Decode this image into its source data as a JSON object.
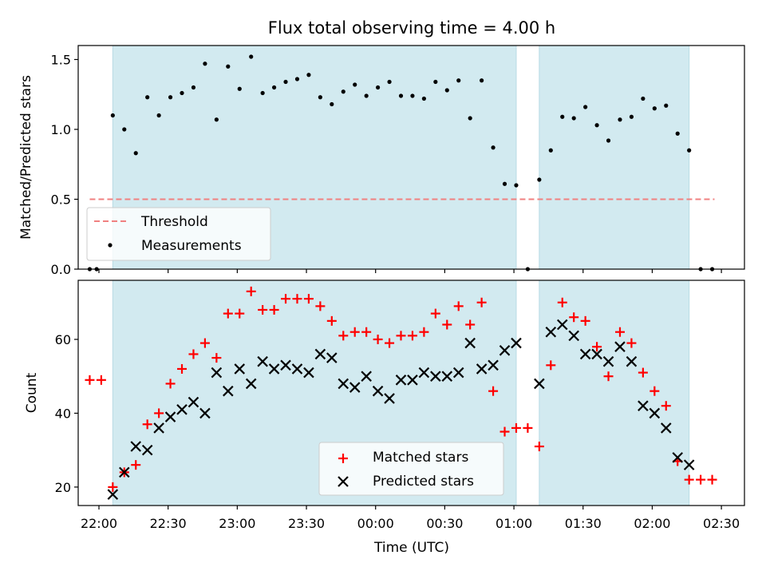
{
  "chart_data": {
    "type": "scatter",
    "title": "Flux total observing time = 4.00 h",
    "xlabel": "Time (UTC)",
    "x_tick_labels": [
      "22:00",
      "22:30",
      "23:00",
      "23:30",
      "00:00",
      "00:30",
      "01:00",
      "01:30",
      "02:00",
      "02:30"
    ],
    "x_tick_minutes": [
      0,
      30,
      60,
      90,
      120,
      150,
      180,
      210,
      240,
      270
    ],
    "xlim_minutes": [
      -9,
      280
    ],
    "observing_windows_minutes": [
      [
        6,
        181
      ],
      [
        191,
        256
      ]
    ],
    "window_color": "#d2eaf0",
    "panels": [
      {
        "id": "ratio",
        "ylabel": "Matched/Predicted stars",
        "ylim": [
          0,
          1.6
        ],
        "y_ticks": [
          0.0,
          0.5,
          1.0,
          1.5
        ],
        "y_tick_labels": [
          "0.0",
          "0.5",
          "1.0",
          "1.5"
        ],
        "legend_position": "lower-left",
        "threshold": {
          "name": "Threshold",
          "value": 0.5,
          "x_range_minutes": [
            -4,
            267
          ],
          "color": "#f08080"
        },
        "series": [
          {
            "name": "Measurements",
            "marker": "dot",
            "color": "#000000",
            "x": [
              -4,
              -1,
              6,
              11,
              16,
              21,
              26,
              31,
              36,
              41,
              46,
              51,
              56,
              61,
              66,
              71,
              76,
              81,
              86,
              91,
              96,
              101,
              106,
              111,
              116,
              121,
              126,
              131,
              136,
              141,
              146,
              151,
              156,
              161,
              166,
              171,
              176,
              181,
              186,
              191,
              196,
              201,
              206,
              211,
              216,
              221,
              226,
              231,
              236,
              241,
              246,
              251,
              256,
              261,
              266
            ],
            "y": [
              0.0,
              0.0,
              1.1,
              1.0,
              0.83,
              1.23,
              1.1,
              1.23,
              1.26,
              1.3,
              1.47,
              1.07,
              1.45,
              1.29,
              1.52,
              1.26,
              1.3,
              1.34,
              1.36,
              1.39,
              1.23,
              1.18,
              1.27,
              1.32,
              1.24,
              1.3,
              1.34,
              1.24,
              1.24,
              1.22,
              1.34,
              1.28,
              1.35,
              1.08,
              1.35,
              0.87,
              0.61,
              0.6,
              0.0,
              0.64,
              0.85,
              1.09,
              1.08,
              1.16,
              1.03,
              0.92,
              1.07,
              1.09,
              1.22,
              1.15,
              1.17,
              0.97,
              0.85,
              0.0,
              0.0
            ]
          }
        ]
      },
      {
        "id": "count",
        "ylabel": "Count",
        "ylim": [
          15,
          76
        ],
        "y_ticks": [
          20,
          40,
          60
        ],
        "y_tick_labels": [
          "20",
          "40",
          "60"
        ],
        "legend_position": "lower-center",
        "series": [
          {
            "name": "Matched stars",
            "marker": "plus",
            "color": "#ff0000",
            "x": [
              -4,
              1,
              6,
              11,
              16,
              21,
              26,
              31,
              36,
              41,
              46,
              51,
              56,
              61,
              66,
              71,
              76,
              81,
              86,
              91,
              96,
              101,
              106,
              111,
              116,
              121,
              126,
              131,
              136,
              141,
              146,
              151,
              156,
              161,
              166,
              171,
              176,
              181,
              186,
              191,
              196,
              201,
              206,
              211,
              216,
              221,
              226,
              231,
              236,
              241,
              246,
              251,
              256,
              261,
              266
            ],
            "y": [
              49,
              49,
              20,
              24,
              26,
              37,
              40,
              48,
              52,
              56,
              59,
              55,
              67,
              67,
              73,
              68,
              68,
              71,
              71,
              71,
              69,
              65,
              61,
              62,
              62,
              60,
              59,
              61,
              61,
              62,
              67,
              64,
              69,
              64,
              70,
              46,
              35,
              36,
              36,
              31,
              53,
              70,
              66,
              65,
              58,
              50,
              62,
              59,
              51,
              46,
              42,
              27,
              22,
              22,
              22
            ]
          },
          {
            "name": "Predicted stars",
            "marker": "x",
            "color": "#000000",
            "x": [
              6,
              11,
              16,
              21,
              26,
              31,
              36,
              41,
              46,
              51,
              56,
              61,
              66,
              71,
              76,
              81,
              86,
              91,
              96,
              101,
              106,
              111,
              116,
              121,
              126,
              131,
              136,
              141,
              146,
              151,
              156,
              161,
              166,
              171,
              176,
              181,
              191,
              196,
              201,
              206,
              211,
              216,
              221,
              226,
              231,
              236,
              241,
              246,
              251,
              256
            ],
            "y": [
              18,
              24,
              31,
              30,
              36,
              39,
              41,
              43,
              40,
              51,
              46,
              52,
              48,
              54,
              52,
              53,
              52,
              51,
              56,
              55,
              48,
              47,
              50,
              46,
              44,
              49,
              49,
              51,
              50,
              50,
              51,
              59,
              52,
              53,
              57,
              59,
              48,
              62,
              64,
              61,
              56,
              56,
              54,
              58,
              54,
              42,
              40,
              36,
              28,
              26
            ]
          }
        ]
      }
    ]
  }
}
